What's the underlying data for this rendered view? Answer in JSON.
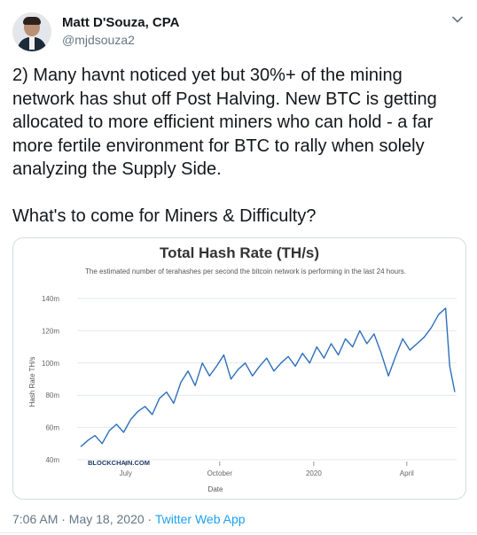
{
  "user": {
    "name": "Matt D'Souza, CPA",
    "handle": "@mjdsouza2"
  },
  "tweet": {
    "text": "2) Many havnt noticed yet but 30%+ of the mining network has shut off Post Halving. New BTC is getting allocated to more efficient miners who can hold - a far more fertile environment for BTC to rally when solely analyzing the Supply Side.\n\nWhat's to come for Miners & Difficulty?"
  },
  "meta": {
    "timestamp": "7:06 AM · May 18, 2020",
    "separator": " · ",
    "source": "Twitter Web App"
  },
  "chart_data": {
    "type": "line",
    "title": "Total Hash Rate (TH/s)",
    "subtitle": "The estimated number of terahashes per second the bitcoin network is performing in the last 24 hours.",
    "xlabel": "Date",
    "ylabel": "Hash Rate TH/s",
    "watermark": "BLOCKCHAIN.COM",
    "y_ticks": [
      "40m",
      "60m",
      "80m",
      "100m",
      "120m",
      "140m"
    ],
    "ylim": [
      40,
      140
    ],
    "x_ticks": [
      "July",
      "October",
      "2020",
      "April"
    ],
    "grid": true,
    "series": [
      {
        "color": "#2d6fbb",
        "x": [
          "2019-05-18",
          "2019-05-25",
          "2019-06-01",
          "2019-06-08",
          "2019-06-15",
          "2019-06-22",
          "2019-06-29",
          "2019-07-06",
          "2019-07-13",
          "2019-07-20",
          "2019-07-27",
          "2019-08-03",
          "2019-08-10",
          "2019-08-17",
          "2019-08-24",
          "2019-08-31",
          "2019-09-07",
          "2019-09-14",
          "2019-09-21",
          "2019-09-28",
          "2019-10-05",
          "2019-10-12",
          "2019-10-19",
          "2019-10-26",
          "2019-11-02",
          "2019-11-09",
          "2019-11-16",
          "2019-11-23",
          "2019-11-30",
          "2019-12-07",
          "2019-12-14",
          "2019-12-21",
          "2019-12-28",
          "2020-01-04",
          "2020-01-11",
          "2020-01-18",
          "2020-01-25",
          "2020-02-01",
          "2020-02-08",
          "2020-02-15",
          "2020-02-22",
          "2020-02-29",
          "2020-03-07",
          "2020-03-14",
          "2020-03-21",
          "2020-03-28",
          "2020-04-04",
          "2020-04-11",
          "2020-04-18",
          "2020-04-25",
          "2020-05-02",
          "2020-05-09",
          "2020-05-13",
          "2020-05-18"
        ],
        "values": [
          48,
          52,
          55,
          50,
          58,
          62,
          57,
          65,
          70,
          73,
          68,
          78,
          82,
          75,
          88,
          95,
          86,
          100,
          92,
          98,
          105,
          90,
          96,
          100,
          92,
          98,
          103,
          95,
          100,
          104,
          98,
          106,
          100,
          110,
          103,
          112,
          105,
          115,
          110,
          120,
          112,
          118,
          106,
          92,
          104,
          115,
          108,
          112,
          116,
          122,
          130,
          134,
          98,
          82
        ]
      }
    ]
  }
}
